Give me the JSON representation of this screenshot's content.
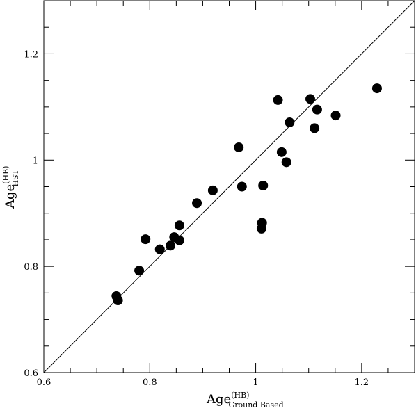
{
  "chart_data": {
    "type": "scatter",
    "xlabel": {
      "main": "Age",
      "sup": "(HB)",
      "sub": "Ground Based"
    },
    "ylabel": {
      "main": "Age",
      "sup": "(HB)",
      "sub": "HST"
    },
    "xlim": [
      0.6,
      1.3
    ],
    "ylim": [
      0.6,
      1.3
    ],
    "x_ticks": [
      {
        "value": 0.6,
        "label": "0.6"
      },
      {
        "value": 0.8,
        "label": "0.8"
      },
      {
        "value": 1.0,
        "label": "1"
      },
      {
        "value": 1.2,
        "label": "1.2"
      }
    ],
    "y_ticks": [
      {
        "value": 0.6,
        "label": "0.6"
      },
      {
        "value": 0.8,
        "label": "0.8"
      },
      {
        "value": 1.0,
        "label": "1"
      },
      {
        "value": 1.2,
        "label": "1.2"
      }
    ],
    "minor_tick_step": 0.05,
    "reference_line": {
      "type": "identity",
      "from": [
        0.6,
        0.6
      ],
      "to": [
        1.3,
        1.3
      ]
    },
    "grid": false,
    "marker_color": "#000000",
    "points": [
      {
        "x": 0.737,
        "y": 0.744
      },
      {
        "x": 0.74,
        "y": 0.736
      },
      {
        "x": 0.78,
        "y": 0.792
      },
      {
        "x": 0.792,
        "y": 0.851
      },
      {
        "x": 0.819,
        "y": 0.832
      },
      {
        "x": 0.839,
        "y": 0.839
      },
      {
        "x": 0.846,
        "y": 0.855
      },
      {
        "x": 0.856,
        "y": 0.849
      },
      {
        "x": 0.856,
        "y": 0.877
      },
      {
        "x": 0.889,
        "y": 0.919
      },
      {
        "x": 0.919,
        "y": 0.943
      },
      {
        "x": 0.968,
        "y": 1.024
      },
      {
        "x": 0.974,
        "y": 0.95
      },
      {
        "x": 1.011,
        "y": 0.871
      },
      {
        "x": 1.012,
        "y": 0.882
      },
      {
        "x": 1.014,
        "y": 0.952
      },
      {
        "x": 1.042,
        "y": 1.113
      },
      {
        "x": 1.049,
        "y": 1.015
      },
      {
        "x": 1.058,
        "y": 0.996
      },
      {
        "x": 1.064,
        "y": 1.071
      },
      {
        "x": 1.103,
        "y": 1.115
      },
      {
        "x": 1.111,
        "y": 1.06
      },
      {
        "x": 1.116,
        "y": 1.095
      },
      {
        "x": 1.151,
        "y": 1.084
      },
      {
        "x": 1.229,
        "y": 1.135
      }
    ]
  }
}
